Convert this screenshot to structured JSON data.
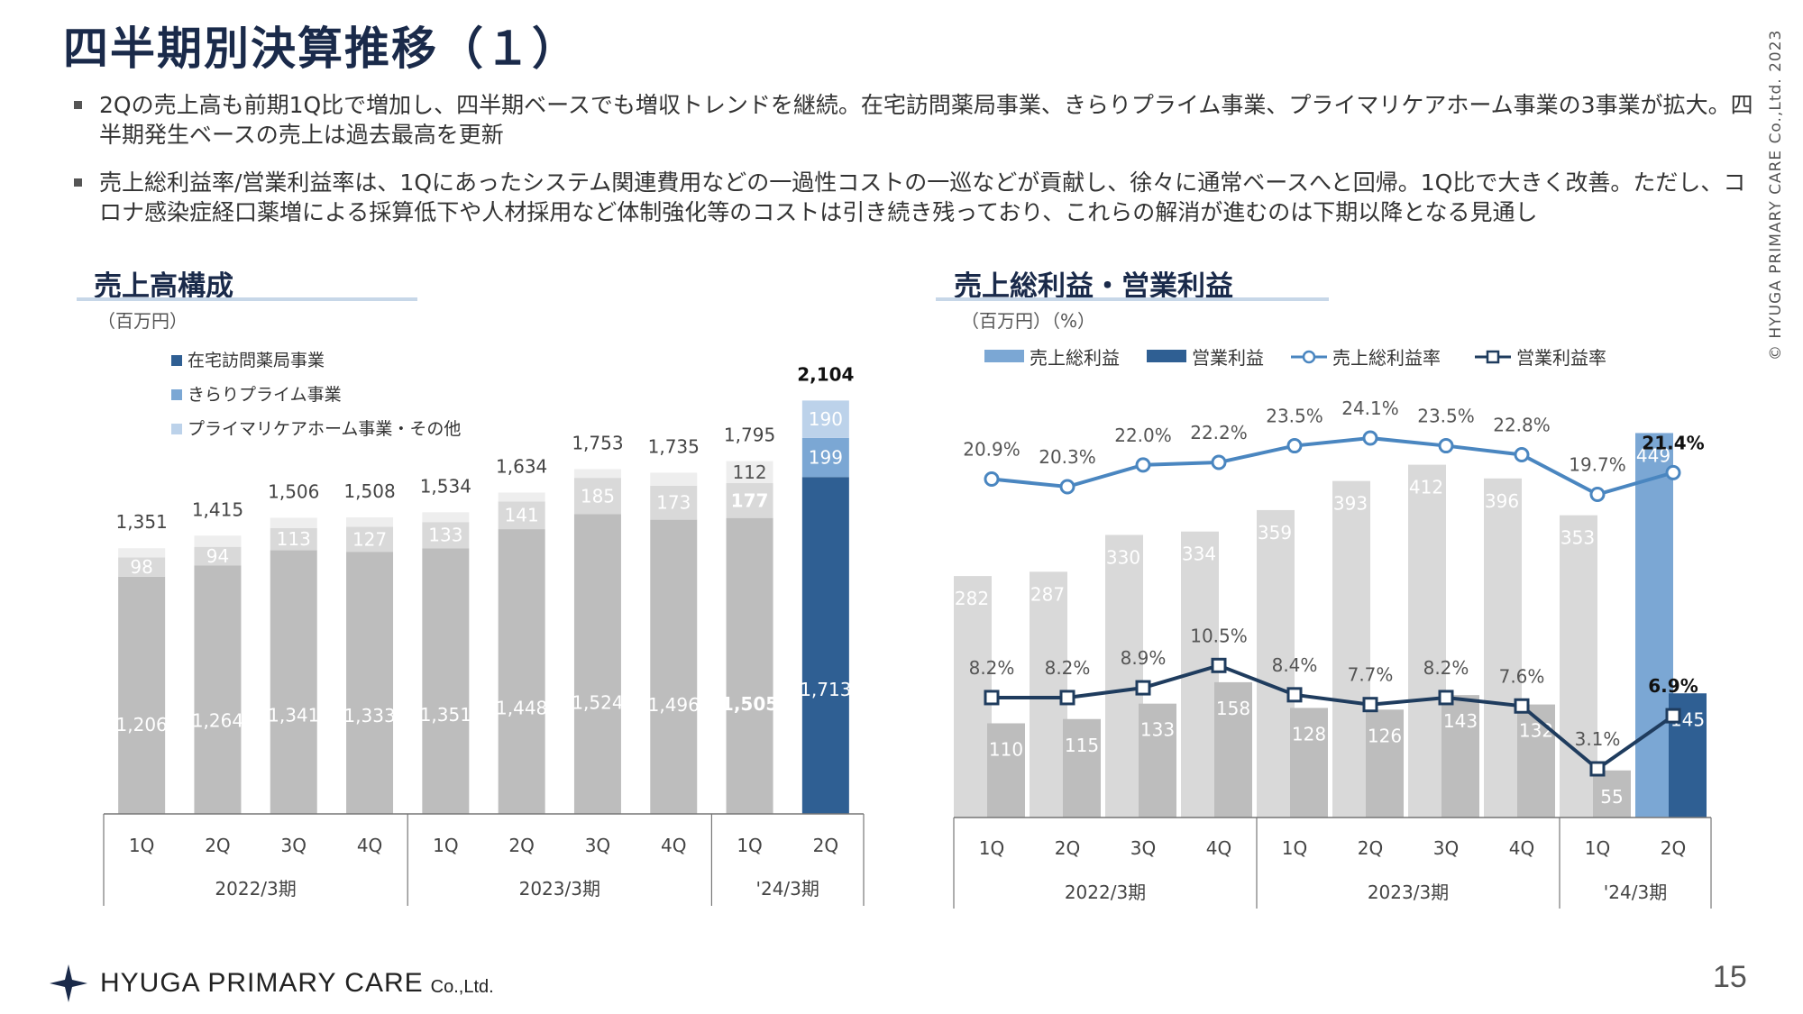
{
  "page": {
    "title": "四半期別決算推移（１）",
    "bullets": [
      "2Qの売上高も前期1Q比で増加し、四半期ベースでも増収トレンドを継続。在宅訪問薬局事業、きらりプライム事業、プライマリケアホーム事業の3事業が拡大。四半期発生ベースの売上は過去最高を更新",
      "売上総利益率/営業利益率は、1Qにあったシステム関連費用などの一過性コストの一巡などが貢献し、徐々に通常ベースへと回帰。1Q比で大きく改善。ただし、コロナ感染症経口薬増による採算低下や人材採用など体制強化等のコストは引き続き残っており、これらの解消が進むのは下期以降となる見通し"
    ],
    "copyright": "© HYUGA PRIMARY CARE Co.,Ltd.   2023",
    "logo_text": "HYUGA PRIMARY CARE",
    "logo_suffix": "Co.,Ltd.",
    "page_number": "15"
  },
  "colors": {
    "bar_gray": "#bdbdbd",
    "bar_light": "#d9d9d9",
    "bar_lighter": "#eeeeee",
    "navy": "#2f5f93",
    "mid_blue": "#7ba7d4",
    "pale_blue": "#bcd2ea",
    "line_blue": "#4a86c0",
    "line_navy": "#1f3c5e",
    "title_color": "#1a2a4a"
  },
  "chart_data": [
    {
      "type": "bar",
      "stacked": true,
      "title": "売上高構成",
      "unit": "（百万円）",
      "categories": [
        "1Q",
        "2Q",
        "3Q",
        "4Q",
        "1Q",
        "2Q",
        "3Q",
        "4Q",
        "1Q",
        "2Q"
      ],
      "groups": [
        {
          "label": "2022/3期",
          "count": 4
        },
        {
          "label": "2023/3期",
          "count": 4
        },
        {
          "label": "'24/3期",
          "count": 2
        }
      ],
      "series": [
        {
          "name": "在宅訪問薬局事業",
          "values": [
            1206,
            1264,
            1341,
            1333,
            1351,
            1448,
            1524,
            1496,
            1505,
            1713
          ],
          "labels": [
            "1,206",
            "1,264",
            "1,341",
            "1,333",
            "1,351",
            "1,448",
            "1,524",
            "1,496",
            "1,505",
            "1,713"
          ]
        },
        {
          "name": "きらりプライム事業",
          "values": [
            98,
            94,
            113,
            127,
            133,
            141,
            185,
            173,
            177,
            199
          ],
          "labels": [
            "98",
            "94",
            "113",
            "127",
            "133",
            "141",
            "185",
            "173",
            "177",
            "199"
          ]
        },
        {
          "name": "プライマリケアホーム事業・その他",
          "values": [
            47,
            57,
            52,
            48,
            50,
            45,
            44,
            66,
            112,
            190
          ],
          "labels": [
            "",
            "",
            "",
            "",
            "",
            "",
            "",
            "",
            "112",
            "190"
          ]
        }
      ],
      "totals": [
        1351,
        1415,
        1506,
        1508,
        1534,
        1634,
        1753,
        1735,
        1795,
        2104
      ],
      "total_labels": [
        "1,351",
        "1,415",
        "1,506",
        "1,508",
        "1,534",
        "1,634",
        "1,753",
        "1,735",
        "1,795",
        "2,104"
      ],
      "ylim": [
        0,
        2200
      ],
      "legend_placement": "top-left",
      "highlight_index": 9
    },
    {
      "type": "bar+line",
      "title": "売上総利益・営業利益",
      "unit": "（百万円）（%）",
      "categories": [
        "1Q",
        "2Q",
        "3Q",
        "4Q",
        "1Q",
        "2Q",
        "3Q",
        "4Q",
        "1Q",
        "2Q"
      ],
      "groups": [
        {
          "label": "2022/3期",
          "count": 4
        },
        {
          "label": "2023/3期",
          "count": 4
        },
        {
          "label": "'24/3期",
          "count": 2
        }
      ],
      "legend": [
        "売上総利益",
        "営業利益",
        "売上総利益率",
        "営業利益率"
      ],
      "gross_profit": [
        282,
        287,
        330,
        334,
        359,
        393,
        412,
        396,
        353,
        449
      ],
      "operating_profit": [
        110,
        115,
        133,
        158,
        128,
        126,
        143,
        132,
        55,
        145
      ],
      "gross_margin": [
        20.9,
        20.3,
        22.0,
        22.2,
        23.5,
        24.1,
        23.5,
        22.8,
        19.7,
        21.4
      ],
      "gross_margin_labels": [
        "20.9%",
        "20.3%",
        "22.0%",
        "22.2%",
        "23.5%",
        "24.1%",
        "23.5%",
        "22.8%",
        "19.7%",
        "21.4%"
      ],
      "operating_margin": [
        8.2,
        8.2,
        8.9,
        10.5,
        8.4,
        7.7,
        8.2,
        7.6,
        3.1,
        6.9
      ],
      "operating_margin_labels": [
        "8.2%",
        "8.2%",
        "8.9%",
        "10.5%",
        "8.4%",
        "7.7%",
        "8.2%",
        "7.6%",
        "3.1%",
        "6.9%"
      ],
      "highlight_index": 9
    }
  ]
}
